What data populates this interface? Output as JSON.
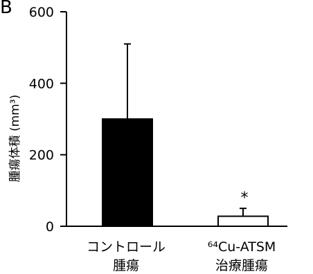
{
  "panel_label": "B",
  "chart_data": {
    "type": "bar",
    "categories": [
      [
        "コントロール",
        "腫瘍"
      ],
      [
        "⁶⁴Cu-ATSM",
        "治療腫瘍"
      ]
    ],
    "series": [
      {
        "values": [
          300,
          28
        ],
        "errors": [
          210,
          22
        ],
        "fill_colors": [
          "#000000",
          "#ffffff"
        ]
      }
    ],
    "ylabel": "腫瘍体積 (mm³)",
    "yticks": [
      0,
      200,
      400,
      600
    ],
    "ylim": [
      0,
      600
    ],
    "annotations": [
      {
        "category_index": 1,
        "text": "*"
      }
    ],
    "grid": false
  }
}
